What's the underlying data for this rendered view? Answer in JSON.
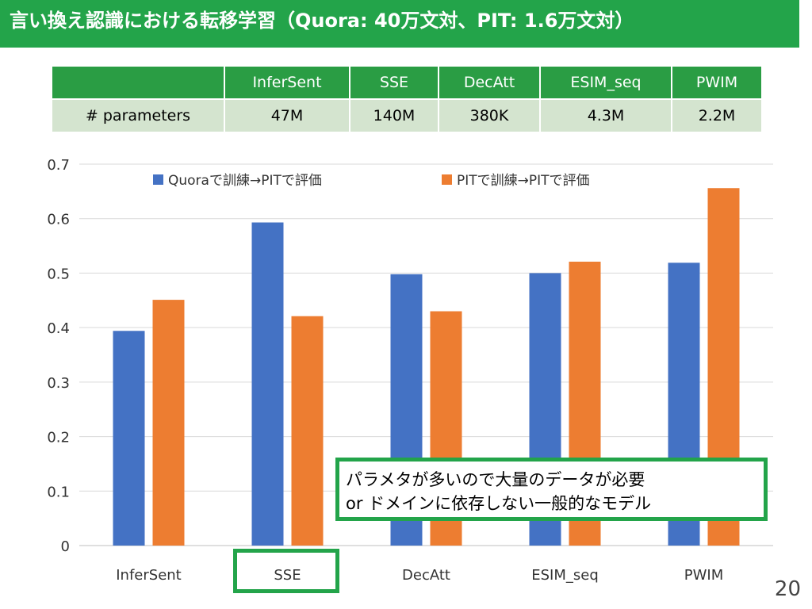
{
  "slide": {
    "title": "言い換え認識における転移学習（Quora: 40万文対、PIT: 1.6万文対）",
    "page_number": "20"
  },
  "table": {
    "header": [
      "",
      "InferSent",
      "SSE",
      "DecAtt",
      "ESIM_seq",
      "PWIM"
    ],
    "row_label": "# parameters",
    "values": [
      "47M",
      "140M",
      "380K",
      "4.3M",
      "2.2M"
    ]
  },
  "callout": {
    "line1": "パラメタが多いので大量のデータが必要",
    "line2": "or ドメインに依存しない一般的なモデル"
  },
  "colors": {
    "series1": "#4472c4",
    "series2": "#ed7d31",
    "accent": "#23a44a",
    "grid": "#d9d9d9"
  },
  "chart_data": {
    "type": "bar",
    "categories": [
      "InferSent",
      "SSE",
      "DecAtt",
      "ESIM_seq",
      "PWIM"
    ],
    "series": [
      {
        "name": "Quoraで訓練→PITで評価",
        "values": [
          0.394,
          0.593,
          0.498,
          0.5,
          0.519
        ]
      },
      {
        "name": "PITで訓練→PITで評価",
        "values": [
          0.451,
          0.421,
          0.43,
          0.521,
          0.656
        ]
      }
    ],
    "yticks": [
      "0",
      "0.1",
      "0.2",
      "0.3",
      "0.4",
      "0.5",
      "0.6",
      "0.7"
    ],
    "ylim": [
      0,
      0.7
    ],
    "grid": true,
    "legend": "top"
  }
}
